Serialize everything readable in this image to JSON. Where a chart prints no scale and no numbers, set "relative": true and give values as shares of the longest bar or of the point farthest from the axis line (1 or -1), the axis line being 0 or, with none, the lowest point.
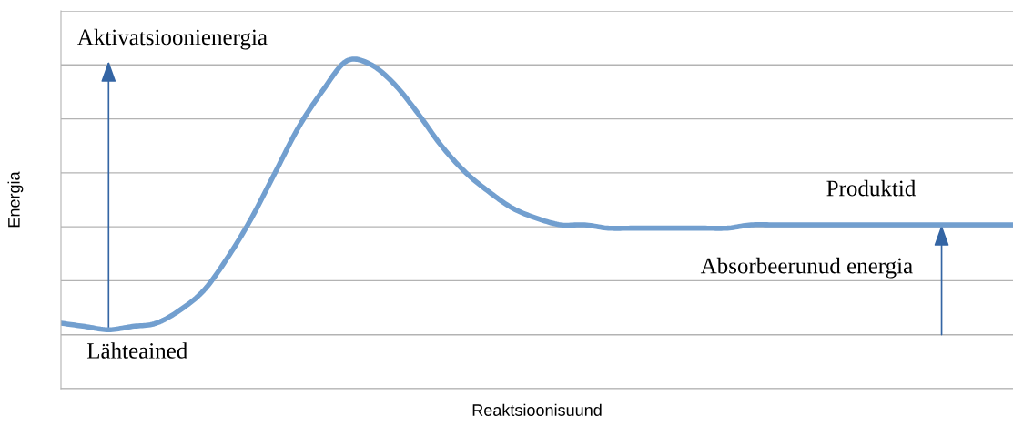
{
  "chart_data": {
    "type": "line",
    "relative": true,
    "xlabel": "Reaktsioonisuund",
    "ylabel": "Energia",
    "categories": [
      null,
      null,
      null,
      null,
      null,
      null,
      null,
      null,
      null,
      null,
      null,
      null,
      null,
      null,
      null,
      null,
      null,
      null,
      null,
      null,
      null,
      null,
      null,
      null,
      null,
      null,
      null,
      null,
      null,
      null,
      null,
      null,
      null,
      null,
      null,
      null,
      null,
      null,
      null,
      null,
      null
    ],
    "series": [
      {
        "color": "#729fcf",
        "values": [
          0.2,
          0.19,
          0.18,
          0.19,
          0.2,
          0.24,
          0.3,
          0.4,
          0.52,
          0.66,
          0.8,
          0.91,
          1,
          0.99,
          0.93,
          0.84,
          0.74,
          0.66,
          0.6,
          0.55,
          0.52,
          0.5,
          0.5,
          0.49,
          0.49,
          0.49,
          0.49,
          0.49,
          0.49,
          0.5,
          0.5,
          0.5,
          0.5,
          0.5,
          0.5,
          0.5,
          0.5,
          0.5,
          0.5,
          0.5,
          0.5
        ]
      }
    ],
    "annotations": [
      "Aktivatsioonienergia",
      "Lähteained",
      "Produktid",
      "Absorbeerunud energia"
    ],
    "grid": "y",
    "marker": "none",
    "line_style": "solid"
  }
}
